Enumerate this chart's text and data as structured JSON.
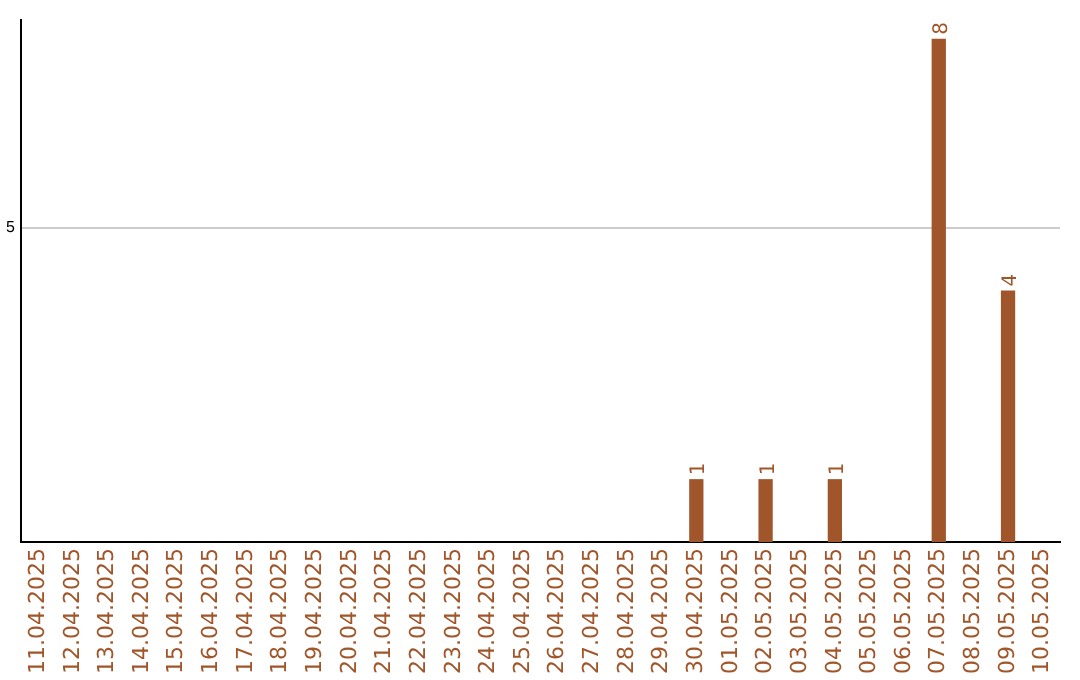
{
  "chart_data": {
    "type": "bar",
    "categories": [
      "11.04.2025",
      "12.04.2025",
      "13.04.2025",
      "14.04.2025",
      "15.04.2025",
      "16.04.2025",
      "17.04.2025",
      "18.04.2025",
      "19.04.2025",
      "20.04.2025",
      "21.04.2025",
      "22.04.2025",
      "23.04.2025",
      "24.04.2025",
      "25.04.2025",
      "26.04.2025",
      "27.04.2025",
      "28.04.2025",
      "29.04.2025",
      "30.04.2025",
      "01.05.2025",
      "02.05.2025",
      "03.05.2025",
      "04.05.2025",
      "05.05.2025",
      "06.05.2025",
      "07.05.2025",
      "08.05.2025",
      "09.05.2025",
      "10.05.2025"
    ],
    "values": [
      null,
      null,
      null,
      null,
      null,
      null,
      null,
      null,
      null,
      null,
      null,
      null,
      null,
      null,
      null,
      null,
      null,
      null,
      null,
      1,
      null,
      1,
      null,
      1,
      null,
      null,
      8,
      null,
      4,
      null
    ],
    "color": "#a0562a",
    "data_labels": true,
    "ylim": [
      0,
      8.3
    ],
    "yticks": [
      5
    ],
    "grid": "y",
    "legend": false
  }
}
